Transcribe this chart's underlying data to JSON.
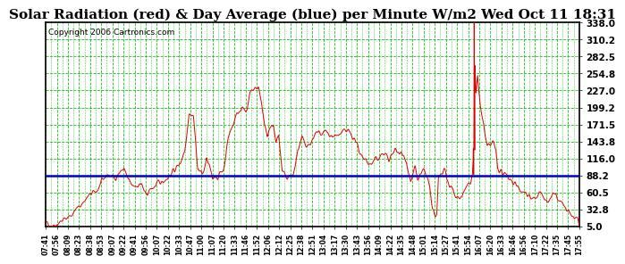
{
  "title": "Solar Radiation (red) & Day Average (blue) per Minute W/m2 Wed Oct 11 18:31",
  "copyright": "Copyright 2006 Cartronics.com",
  "x_labels": [
    "07:41",
    "07:56",
    "08:09",
    "08:23",
    "08:38",
    "08:53",
    "09:07",
    "09:22",
    "09:41",
    "09:56",
    "10:07",
    "10:22",
    "10:33",
    "10:47",
    "11:00",
    "11:07",
    "11:20",
    "11:33",
    "11:46",
    "11:52",
    "12:06",
    "12:12",
    "12:25",
    "12:38",
    "12:51",
    "13:04",
    "13:17",
    "13:30",
    "13:43",
    "13:56",
    "14:09",
    "14:22",
    "14:35",
    "14:48",
    "15:01",
    "15:14",
    "15:27",
    "15:41",
    "15:54",
    "16:07",
    "16:20",
    "16:33",
    "16:46",
    "16:56",
    "17:10",
    "17:22",
    "17:35",
    "17:45",
    "17:55"
  ],
  "y_ticks": [
    5.0,
    32.8,
    60.5,
    88.2,
    116.0,
    143.8,
    171.5,
    199.2,
    227.0,
    254.8,
    282.5,
    310.2,
    338.0
  ],
  "y_min": 5.0,
  "y_max": 338.0,
  "day_average": 88.2,
  "background_color": "#ffffff",
  "plot_bg_color": "#ffffff",
  "grid_color": "#00bb00",
  "line_color_red": "#dd0000",
  "line_color_blue": "#0000cc",
  "title_fontsize": 11,
  "copyright_fontsize": 6.5
}
